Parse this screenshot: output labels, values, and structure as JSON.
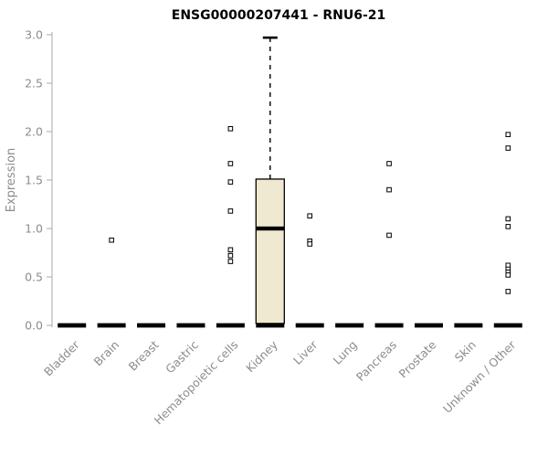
{
  "chart_data": {
    "type": "boxplot",
    "title": "ENSG00000207441 - RNU6-21",
    "ylabel": "Expression",
    "ylim": [
      0,
      3
    ],
    "yticks": [
      "0.0",
      "0.5",
      "1.0",
      "1.5",
      "2.0",
      "2.5",
      "3.0"
    ],
    "categories": [
      "Bladder",
      "Brain",
      "Breast",
      "Gastric",
      "Hematopoietic cells",
      "Kidney",
      "Liver",
      "Lung",
      "Pancreas",
      "Prostate",
      "Skin",
      "Unknown / Other"
    ],
    "boxes": [
      {
        "category": "Bladder",
        "whisker_low": 0,
        "q1": 0,
        "median": 0,
        "q3": 0,
        "whisker_high": 0,
        "outliers": []
      },
      {
        "category": "Brain",
        "whisker_low": 0,
        "q1": 0,
        "median": 0,
        "q3": 0,
        "whisker_high": 0,
        "outliers": [
          0.88
        ]
      },
      {
        "category": "Breast",
        "whisker_low": 0,
        "q1": 0,
        "median": 0,
        "q3": 0,
        "whisker_high": 0,
        "outliers": []
      },
      {
        "category": "Gastric",
        "whisker_low": 0,
        "q1": 0,
        "median": 0,
        "q3": 0,
        "whisker_high": 0,
        "outliers": []
      },
      {
        "category": "Hematopoietic cells",
        "whisker_low": 0,
        "q1": 0,
        "median": 0,
        "q3": 0,
        "whisker_high": 0,
        "outliers": [
          2.03,
          1.67,
          1.48,
          1.18,
          0.78,
          0.72,
          0.66
        ]
      },
      {
        "category": "Kidney",
        "whisker_low": 0,
        "q1": 0.02,
        "median": 1.0,
        "q3": 1.51,
        "whisker_high": 2.97,
        "outliers": []
      },
      {
        "category": "Liver",
        "whisker_low": 0,
        "q1": 0,
        "median": 0,
        "q3": 0,
        "whisker_high": 0,
        "outliers": [
          1.13,
          0.87,
          0.84
        ]
      },
      {
        "category": "Lung",
        "whisker_low": 0,
        "q1": 0,
        "median": 0,
        "q3": 0,
        "whisker_high": 0,
        "outliers": []
      },
      {
        "category": "Pancreas",
        "whisker_low": 0,
        "q1": 0,
        "median": 0,
        "q3": 0,
        "whisker_high": 0,
        "outliers": [
          1.67,
          1.4,
          0.93
        ]
      },
      {
        "category": "Prostate",
        "whisker_low": 0,
        "q1": 0,
        "median": 0,
        "q3": 0,
        "whisker_high": 0,
        "outliers": []
      },
      {
        "category": "Skin",
        "whisker_low": 0,
        "q1": 0,
        "median": 0,
        "q3": 0,
        "whisker_high": 0,
        "outliers": []
      },
      {
        "category": "Unknown / Other",
        "whisker_low": 0,
        "q1": 0,
        "median": 0,
        "q3": 0,
        "whisker_high": 0,
        "outliers": [
          1.97,
          1.83,
          1.1,
          1.02,
          0.62,
          0.58,
          0.55,
          0.52,
          0.35
        ]
      }
    ],
    "colors": {
      "box_fill": "#EFE9D2",
      "box_stroke": "#000000",
      "axis": "#AAAAAA",
      "tick_label": "#8C8C8C",
      "title": "#000000",
      "background": "#FFFFFF"
    },
    "layout": {
      "grid": false,
      "legend": "none",
      "whisker_style": "dashed",
      "outlier_marker": "open-square"
    }
  }
}
